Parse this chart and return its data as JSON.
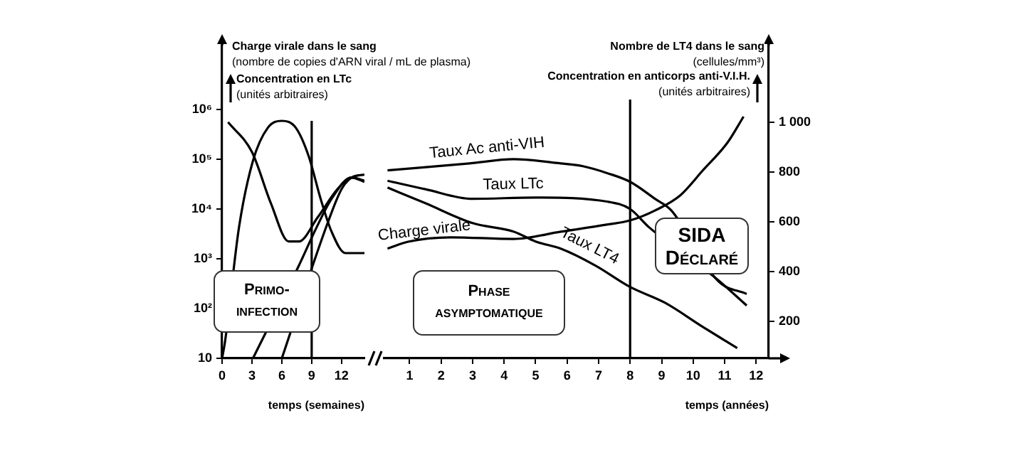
{
  "chart_data": [
    {
      "type": "line",
      "ylabel": "Charge virale dans le sang\n(nombre de copies d'ARN viral / mL de plasma)",
      "xlabel": "temps (semaines)",
      "annotations": [
        "Concentration en LTc\n(unités arbitraires)",
        "Primo-infection"
      ],
      "log": "y",
      "xlim": [
        0,
        14.3
      ],
      "xticks": [
        0,
        3,
        6,
        9,
        12
      ],
      "ylim": [
        10,
        22000000
      ],
      "yticks": [
        10,
        {
          "value": 100,
          "label": "10²"
        },
        {
          "value": 1000,
          "label": "10³"
        },
        {
          "value": 10000,
          "label": "10⁴"
        },
        {
          "value": 100000,
          "label": "10⁵"
        },
        {
          "value": 1000000,
          "label": "10⁶"
        }
      ],
      "y2lim": [
        50,
        1320
      ],
      "tick_labels": "xy",
      "marker": "none",
      "line_style": "solid",
      "ref_lines": [
        {
          "axis": "x",
          "value": 9
        }
      ],
      "series": [
        {
          "color": "#000000",
          "x": [
            0,
            0.3,
            1.7,
            3.1,
            4.6,
            6,
            7.4,
            8.7,
            9.9,
            11,
            12.4,
            13.9,
            14.3
          ],
          "values": [
            10,
            22,
            4300,
            93000,
            430000,
            590000,
            430000,
            115000,
            16000,
            3500,
            1300,
            1300,
            1300
          ]
        },
        {
          "color": "#000000",
          "x": [
            3.1,
            7.7,
            9.5,
            11,
            13,
            14.3
          ],
          "values": [
            10,
            720,
            4300,
            16000,
            43000,
            37000
          ]
        },
        {
          "color": "#000000",
          "axis": "y2",
          "x": [
            6,
            10.6,
            12,
            13,
            14.3
          ],
          "values": [
            50,
            594,
            731,
            777,
            789
          ]
        },
        {
          "color": "#000000",
          "axis": "y2",
          "x": [
            0.6,
            3,
            4.9,
            6.7,
            7.7,
            9.6,
            11.6,
            13,
            14.3
          ],
          "values": [
            1000,
            880,
            674,
            520,
            520,
            617,
            731,
            777,
            760
          ]
        }
      ]
    },
    {
      "type": "line",
      "xlabel": "temps (années)",
      "y2label": "Nombre de LT4 dans le sang\n(cellules/mm³)",
      "annotations": [
        "Concentration en anticorps anti-V.I.H.\n(unités arbitraires)",
        "Phase asymptomatique",
        "SIDA Déclaré"
      ],
      "log": "y",
      "xlim": [
        0.2,
        12.4
      ],
      "xticks": [
        1,
        2,
        3,
        4,
        5,
        6,
        7,
        8,
        9,
        10,
        11,
        12
      ],
      "ylim": [
        10,
        22000000
      ],
      "y2lim": [
        50,
        1320
      ],
      "y2ticks": [
        200,
        400,
        600,
        800,
        {
          "value": 1000,
          "label": "1 000"
        }
      ],
      "tick_labels": "xy2",
      "marker": "none",
      "line_style": "solid",
      "ref_lines": [
        {
          "axis": "x",
          "value": 8
        }
      ],
      "series": [
        {
          "name": "Charge virale",
          "color": "#000000",
          "x": [
            0.3,
            0.95,
            2.3,
            4.3,
            5.8,
            7.3,
            8,
            8.8,
            9.6,
            10.3,
            11.1,
            11.6
          ],
          "values": [
            1600,
            2200,
            2700,
            2500,
            3500,
            4900,
            5900,
            9400,
            19000,
            59000,
            220000,
            720000
          ]
        },
        {
          "name": "Taux LTc",
          "color": "#000000",
          "x": [
            0.3,
            1.5,
            3,
            5,
            7.3,
            8,
            8.6,
            10.8,
            11.7
          ],
          "values": [
            37000,
            25000,
            16000,
            17000,
            14000,
            10000,
            4300,
            370,
            115
          ]
        },
        {
          "name": "Taux Ac anti-VIH",
          "color": "#000000",
          "axis": "y2",
          "x": [
            0.3,
            2.9,
            4.3,
            5.8,
            6.5,
            7.3,
            8,
            8.8,
            9.3,
            10.8,
            11.7
          ],
          "values": [
            806,
            834,
            851,
            834,
            823,
            794,
            760,
            691,
            646,
            360,
            309
          ]
        },
        {
          "name": "Taux LT4",
          "color": "#000000",
          "axis": "y2",
          "x": [
            0.3,
            1.5,
            3,
            4.3,
            5,
            5.8,
            6.9,
            8,
            9.1,
            10.3,
            11.4
          ],
          "values": [
            737,
            674,
            594,
            560,
            520,
            491,
            423,
            337,
            274,
            177,
            91
          ]
        }
      ]
    }
  ]
}
